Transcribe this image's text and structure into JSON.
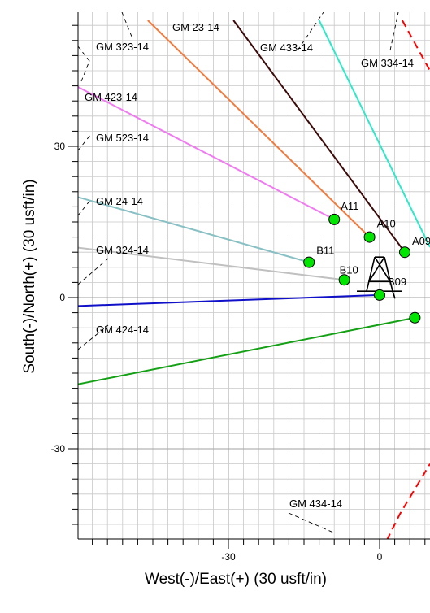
{
  "chart_data": {
    "type": "scatter",
    "xlabel": "West(-)/East(+) (30 usft/in)",
    "ylabel": "South(-)/North(+) (30 usft/in)",
    "xlim": [
      -69,
      10
    ],
    "ylim": [
      -55,
      55
    ],
    "xticks": [
      -30,
      0
    ],
    "yticks": [
      -30,
      0,
      30
    ],
    "grid": true,
    "colors": {
      "grid": "#c8c8c8",
      "axis": "#000000",
      "points": "#00e600",
      "offset": "#ff0000"
    },
    "wellbores": [
      {
        "name": "GM 23-14",
        "color": "#f27a3d",
        "from": [
          -2,
          12
        ],
        "to": [
          -46,
          55
        ]
      },
      {
        "name": "GM 433-14",
        "color": "#3d0a0a",
        "from": [
          5,
          9
        ],
        "to": [
          -29,
          55
        ]
      },
      {
        "name": "GM 334-14",
        "color": "#2ee8c8",
        "from": [
          10,
          10
        ],
        "to": [
          -12,
          55
        ]
      },
      {
        "name": "GM 323-14",
        "color": "#f07af0",
        "from": [
          -9,
          15.5
        ],
        "to": [
          -69,
          46.5
        ]
      },
      {
        "name": "GM 523-14",
        "color": "#88c0c4",
        "from": [
          -14,
          7
        ],
        "to": [
          -69,
          22.5
        ]
      },
      {
        "name": "GM 24-14",
        "color": "#c0c0c0",
        "from": [
          -7,
          3.5
        ],
        "to": [
          -69,
          11
        ]
      },
      {
        "name": "GM 324-14",
        "color": "#1010c8",
        "from": [
          0,
          0.5
        ],
        "to": [
          -69,
          -2
        ]
      },
      {
        "name": "GM 424-14",
        "color": "#14a014",
        "from": [
          7,
          -4
        ],
        "to": [
          -69,
          -19
        ]
      }
    ],
    "surface_locations": [
      {
        "name": "A11",
        "x": -9,
        "y": 15.5
      },
      {
        "name": "A10",
        "x": -2,
        "y": 12
      },
      {
        "name": "A09",
        "x": 5,
        "y": 9
      },
      {
        "name": "B11",
        "x": -14,
        "y": 7
      },
      {
        "name": "B10",
        "x": -7,
        "y": 3.5
      },
      {
        "name": "B09",
        "x": 0,
        "y": 0.5
      },
      {
        "name": "",
        "x": 7,
        "y": -4
      }
    ],
    "well_labels": [
      {
        "text": "GM 23-14"
      },
      {
        "text": "GM 323-14"
      },
      {
        "text": "GM 433-14"
      },
      {
        "text": "GM 334-14"
      },
      {
        "text": "GM 423-14"
      },
      {
        "text": "GM 523-14"
      },
      {
        "text": "GM 24-14"
      },
      {
        "text": "GM 324-14"
      },
      {
        "text": "GM 424-14"
      },
      {
        "text": "GM 434-14"
      }
    ],
    "offset_wells": [
      {
        "name": "GM 334-14 offset",
        "points": [
          [
            4.5,
            55
          ],
          [
            10,
            45
          ]
        ]
      },
      {
        "name": "GM 434-14 offset",
        "points": [
          [
            -1,
            -55
          ],
          [
            1,
            -49
          ],
          [
            4,
            -43
          ],
          [
            10,
            -33
          ]
        ]
      }
    ]
  }
}
